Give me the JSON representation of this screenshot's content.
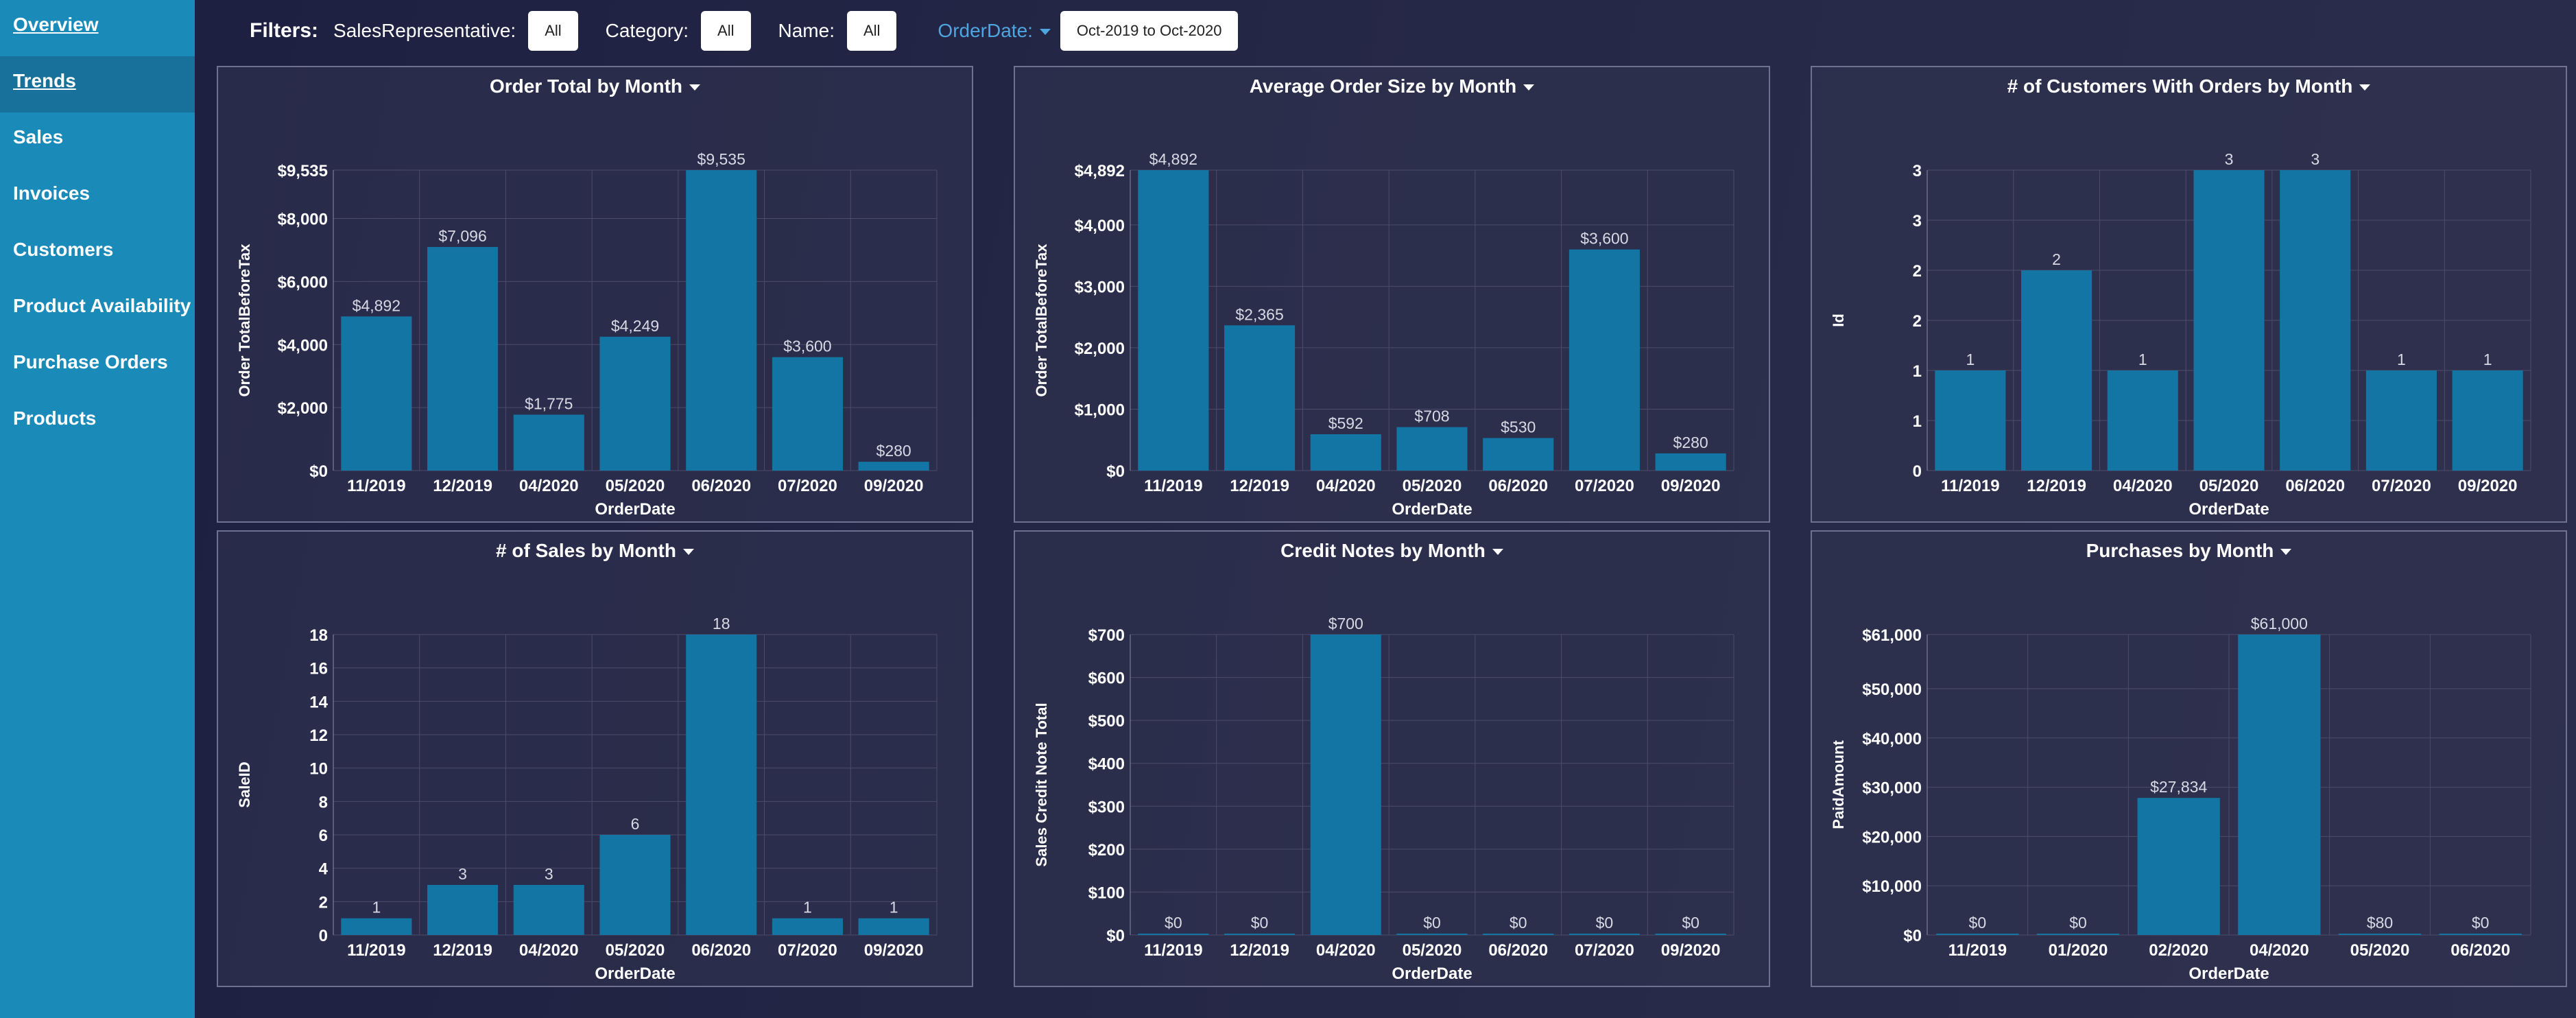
{
  "sidebar": {
    "items": [
      {
        "label": "Overview"
      },
      {
        "label": "Trends"
      },
      {
        "label": "Sales"
      },
      {
        "label": "Invoices"
      },
      {
        "label": "Customers"
      },
      {
        "label": "Product Availability"
      },
      {
        "label": "Purchase Orders"
      },
      {
        "label": "Products"
      }
    ]
  },
  "filters": {
    "title": "Filters:",
    "sales_rep_label": "SalesRepresentative:",
    "sales_rep_value": "All",
    "category_label": "Category:",
    "category_value": "All",
    "name_label": "Name:",
    "name_value": "All",
    "orderdate_label": "OrderDate:",
    "orderdate_value": "Oct-2019 to Oct-2020"
  },
  "colors": {
    "bar": "#1375a3",
    "grid": "#4a4c68",
    "accent": "#4ea6e0"
  },
  "chart_data": [
    {
      "type": "bar",
      "title": "Order Total by Month",
      "xlabel": "OrderDate",
      "ylabel": "Order TotalBeforeTax",
      "categories": [
        "11/2019",
        "12/2019",
        "04/2020",
        "05/2020",
        "06/2020",
        "07/2020",
        "09/2020"
      ],
      "values": [
        4892,
        7096,
        1775,
        4249,
        9535,
        3600,
        280
      ],
      "data_labels": [
        "$4,892",
        "$7,096",
        "$1,775",
        "$4,249",
        "$9,535",
        "$3,600",
        "$280"
      ],
      "ylim": [
        0,
        9535
      ],
      "y_ticks": [
        0,
        2000,
        4000,
        6000,
        8000,
        9535
      ],
      "y_tick_labels": [
        "$0",
        "$2,000",
        "$4,000",
        "$6,000",
        "$8,000",
        "$9,535"
      ]
    },
    {
      "type": "bar",
      "title": "Average Order Size by Month",
      "xlabel": "OrderDate",
      "ylabel": "Order TotalBeforeTax",
      "categories": [
        "11/2019",
        "12/2019",
        "04/2020",
        "05/2020",
        "06/2020",
        "07/2020",
        "09/2020"
      ],
      "values": [
        4892,
        2365,
        592,
        708,
        530,
        3600,
        280
      ],
      "data_labels": [
        "$4,892",
        "$2,365",
        "$592",
        "$708",
        "$530",
        "$3,600",
        "$280"
      ],
      "ylim": [
        0,
        4892
      ],
      "y_ticks": [
        0,
        1000,
        2000,
        3000,
        4000,
        4892
      ],
      "y_tick_labels": [
        "$0",
        "$1,000",
        "$2,000",
        "$3,000",
        "$4,000",
        "$4,892"
      ]
    },
    {
      "type": "bar",
      "title": "# of Customers With Orders by Month",
      "xlabel": "OrderDate",
      "ylabel": "Id",
      "categories": [
        "11/2019",
        "12/2019",
        "04/2020",
        "05/2020",
        "06/2020",
        "07/2020",
        "09/2020"
      ],
      "values": [
        1,
        2,
        1,
        3,
        3,
        1,
        1
      ],
      "data_labels": [
        "1",
        "2",
        "1",
        "3",
        "3",
        "1",
        "1"
      ],
      "ylim": [
        0,
        3
      ],
      "y_ticks": [
        0,
        0.5,
        1,
        1.5,
        2,
        2.5,
        3
      ],
      "y_tick_labels": [
        "0",
        "1",
        "1",
        "2",
        "2",
        "3",
        "3"
      ]
    },
    {
      "type": "bar",
      "title": "# of Sales by Month",
      "xlabel": "OrderDate",
      "ylabel": "SaleID",
      "categories": [
        "11/2019",
        "12/2019",
        "04/2020",
        "05/2020",
        "06/2020",
        "07/2020",
        "09/2020"
      ],
      "values": [
        1,
        3,
        3,
        6,
        18,
        1,
        1
      ],
      "data_labels": [
        "1",
        "3",
        "3",
        "6",
        "18",
        "1",
        "1"
      ],
      "ylim": [
        0,
        18
      ],
      "y_ticks": [
        0,
        2,
        4,
        6,
        8,
        10,
        12,
        14,
        16,
        18
      ],
      "y_tick_labels": [
        "0",
        "2",
        "4",
        "6",
        "8",
        "10",
        "12",
        "14",
        "16",
        "18"
      ]
    },
    {
      "type": "bar",
      "title": "Credit Notes by Month",
      "xlabel": "OrderDate",
      "ylabel": "Sales Credit Note Total",
      "categories": [
        "11/2019",
        "12/2019",
        "04/2020",
        "05/2020",
        "06/2020",
        "07/2020",
        "09/2020"
      ],
      "values": [
        0,
        0,
        700,
        0,
        0,
        0,
        0
      ],
      "data_labels": [
        "$0",
        "$0",
        "$700",
        "$0",
        "$0",
        "$0",
        "$0"
      ],
      "ylim": [
        0,
        700
      ],
      "y_ticks": [
        0,
        100,
        200,
        300,
        400,
        500,
        600,
        700
      ],
      "y_tick_labels": [
        "$0",
        "$100",
        "$200",
        "$300",
        "$400",
        "$500",
        "$600",
        "$700"
      ]
    },
    {
      "type": "bar",
      "title": "Purchases by Month",
      "xlabel": "OrderDate",
      "ylabel": "PaidAmount",
      "categories": [
        "11/2019",
        "01/2020",
        "02/2020",
        "04/2020",
        "05/2020",
        "06/2020"
      ],
      "values": [
        0,
        0,
        27834,
        61000,
        80,
        0
      ],
      "data_labels": [
        "$0",
        "$0",
        "$27,834",
        "$61,000",
        "$80",
        "$0"
      ],
      "ylim": [
        0,
        61000
      ],
      "y_ticks": [
        0,
        10000,
        20000,
        30000,
        40000,
        50000,
        61000
      ],
      "y_tick_labels": [
        "$0",
        "$10,000",
        "$20,000",
        "$30,000",
        "$40,000",
        "$50,000",
        "$61,000"
      ]
    }
  ]
}
